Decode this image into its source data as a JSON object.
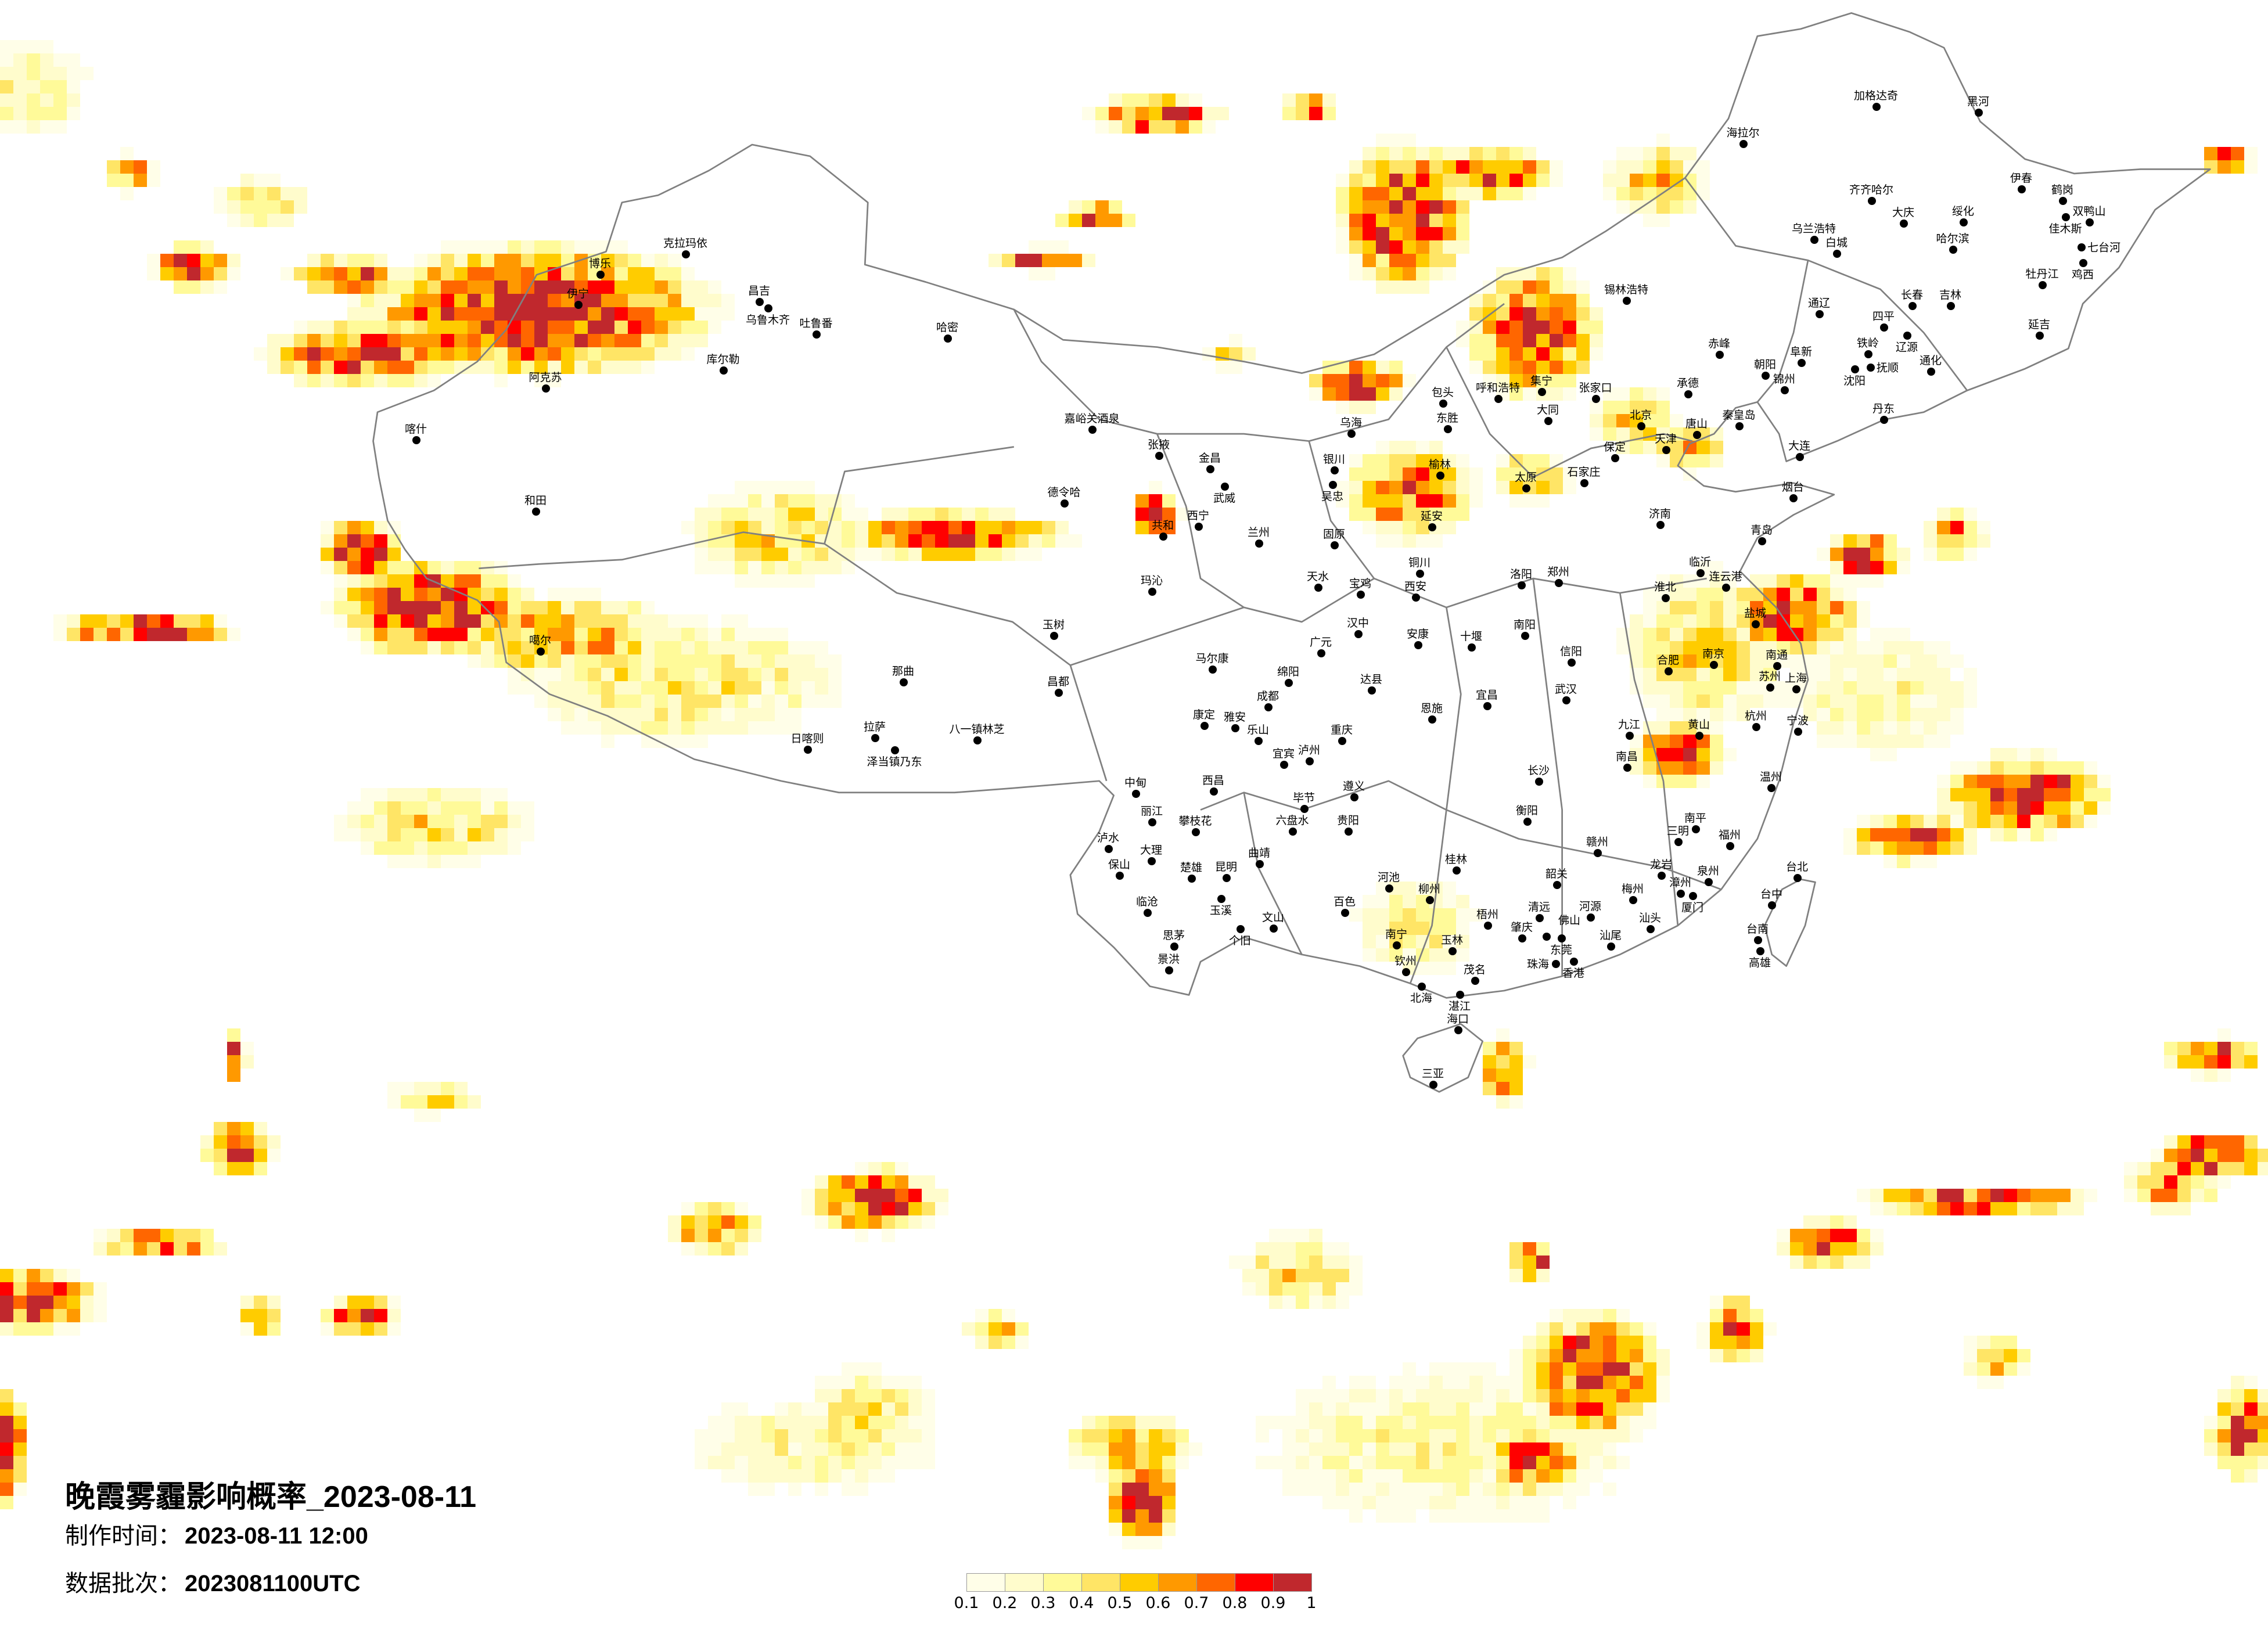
{
  "title": "晚霞雾霾影响概率_2023-08-11",
  "production_time": {
    "label": "制作时间：",
    "value": "2023-08-11 12:00"
  },
  "data_batch": {
    "label": "数据批次：",
    "value": "2023081100UTC"
  },
  "legend": {
    "labels": [
      "0.1",
      "0.2",
      "0.3",
      "0.4",
      "0.5",
      "0.6",
      "0.7",
      "0.8",
      "0.9",
      "1"
    ],
    "colors": [
      "#fffee8",
      "#fffccc",
      "#fffa99",
      "#ffe566",
      "#ffcc00",
      "#ff9900",
      "#ff6600",
      "#ff0000",
      "#c0282d"
    ]
  },
  "map_colors": {
    "border": "#808080",
    "city_dot": "#000000",
    "background": "#ffffff"
  },
  "cities": [
    "克拉玛依",
    "博乐",
    "伊宁",
    "昌吉",
    "乌鲁木齐",
    "吐鲁番",
    "哈密",
    "库尔勒",
    "阿克苏",
    "喀什",
    "和田",
    "噶尔",
    "那曲",
    "日喀则",
    "拉萨",
    "泽当镇乃东",
    "八一镇林芝",
    "嘉峪关酒泉",
    "张掖",
    "金昌",
    "武威",
    "德令哈",
    "西宁",
    "共和",
    "兰州",
    "银川",
    "吴忠",
    "乌海",
    "玛沁",
    "玉树",
    "天水",
    "宝鸡",
    "固原",
    "汉中",
    "广元",
    "马尔康",
    "昌都",
    "绵阳",
    "成都",
    "康定",
    "雅安",
    "乐山",
    "重庆",
    "达县",
    "宜宾",
    "泸州",
    "西昌",
    "中甸",
    "丽江",
    "攀枝花",
    "遵义",
    "毕节",
    "贵阳",
    "六盘水",
    "昆明",
    "大理",
    "曲靖",
    "楚雄",
    "玉溪",
    "临沧",
    "思茅",
    "景洪",
    "保山",
    "泸水",
    "个旧",
    "文山",
    "百色",
    "南宁",
    "河池",
    "柳州",
    "桂林",
    "恩施",
    "十堰",
    "安康",
    "铜川",
    "东胜",
    "包头",
    "呼和浩特",
    "集宁",
    "大同",
    "张家口",
    "北京",
    "承德",
    "天津",
    "唐山",
    "秦皇岛",
    "保定",
    "石家庄",
    "太原",
    "榆林",
    "延安",
    "西安",
    "洛阳",
    "郑州",
    "济南",
    "青岛",
    "烟台",
    "临沂",
    "连云港",
    "淮北",
    "盐城",
    "南阳",
    "信阳",
    "合肥",
    "南京",
    "南通",
    "苏州",
    "上海",
    "杭州",
    "宁波",
    "温州",
    "武汉",
    "宜昌",
    "九江",
    "黄山",
    "长沙",
    "南昌",
    "衡阳",
    "赣州",
    "南平",
    "三明",
    "福州",
    "龙岩",
    "泉州",
    "厦门",
    "漳州",
    "汕头",
    "梅州",
    "韶关",
    "清远",
    "河源",
    "肇庆",
    "佛山",
    "东莞",
    "香港",
    "珠海",
    "汕尾",
    "梧州",
    "玉林",
    "钦州",
    "北海",
    "茂名",
    "湛江",
    "海口",
    "三亚",
    "台北",
    "台中",
    "台南",
    "高雄",
    "大连",
    "锦州",
    "沈阳",
    "抚顺",
    "铁岭",
    "阜新",
    "朝阳",
    "赤峰",
    "丹东",
    "通化",
    "四平",
    "辽源",
    "长春",
    "吉林",
    "延吉",
    "通辽",
    "白城",
    "乌兰浩特",
    "齐齐哈尔",
    "大庆",
    "绥化",
    "哈尔滨",
    "伊春",
    "鹤岗",
    "佳木斯",
    "双鸭山",
    "七台河",
    "鸡西",
    "牡丹江",
    "黑河",
    "加格达奇",
    "海拉尔",
    "锡林浩特"
  ]
}
